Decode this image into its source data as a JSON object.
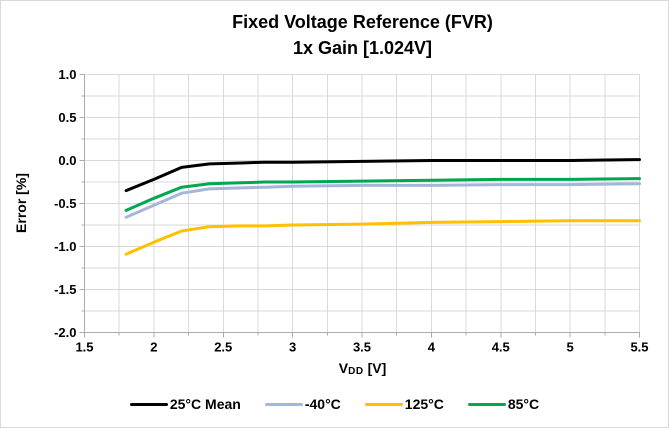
{
  "figure": {
    "title_line1": "Fixed Voltage Reference (FVR)",
    "title_line2": "1x Gain [1.024V]"
  },
  "axes": {
    "y_title": "Error [%]",
    "x_title_main": "V",
    "x_title_sub": "DD",
    "x_title_unit": "[V]"
  },
  "colors": {
    "background": "#ffffff",
    "border": "#d9d9d9",
    "gridline": "#d9d9d9",
    "axis_line": "#ababab",
    "text": "#000000"
  },
  "chart_data": {
    "type": "line",
    "title": "Fixed Voltage Reference (FVR) 1x Gain [1.024V]",
    "xlabel": "VDD [V]",
    "ylabel": "Error [%]",
    "xlim": [
      1.5,
      5.5
    ],
    "ylim": [
      -2.0,
      1.0
    ],
    "grid": true,
    "grid_step": 0.25,
    "legend_position": "bottom",
    "x_tick_values": [
      1.5,
      2,
      2.5,
      3,
      3.5,
      4,
      4.5,
      5,
      5.5
    ],
    "x_tick_labels": [
      "1.5",
      "2",
      "2.5",
      "3",
      "3.5",
      "4",
      "4.5",
      "5",
      "5.5"
    ],
    "y_tick_values": [
      1.0,
      0.5,
      0.0,
      -0.5,
      -1.0,
      -1.5,
      -2.0
    ],
    "y_tick_labels": [
      "1.0",
      "0.5",
      "0.0",
      "-0.5",
      "-1.0",
      "-1.5",
      "-2.0"
    ],
    "x": [
      1.8,
      2.0,
      2.2,
      2.4,
      2.6,
      2.8,
      3.0,
      3.5,
      4.0,
      4.5,
      5.0,
      5.5
    ],
    "series": [
      {
        "name": "25°C Mean",
        "color": "#000000",
        "values": [
          -0.35,
          -0.22,
          -0.08,
          -0.04,
          -0.03,
          -0.02,
          -0.02,
          -0.01,
          0.0,
          0.0,
          0.0,
          0.01
        ]
      },
      {
        "name": "-40°C",
        "color": "#a6b6db",
        "values": [
          -0.66,
          -0.52,
          -0.38,
          -0.33,
          -0.32,
          -0.31,
          -0.3,
          -0.29,
          -0.29,
          -0.28,
          -0.28,
          -0.27
        ]
      },
      {
        "name": "125°C",
        "color": "#ffc000",
        "values": [
          -1.09,
          -0.95,
          -0.82,
          -0.77,
          -0.76,
          -0.76,
          -0.75,
          -0.74,
          -0.72,
          -0.71,
          -0.7,
          -0.7
        ]
      },
      {
        "name": "85°C",
        "color": "#00a651",
        "values": [
          -0.58,
          -0.44,
          -0.31,
          -0.27,
          -0.26,
          -0.25,
          -0.25,
          -0.24,
          -0.23,
          -0.22,
          -0.22,
          -0.21
        ]
      }
    ]
  }
}
